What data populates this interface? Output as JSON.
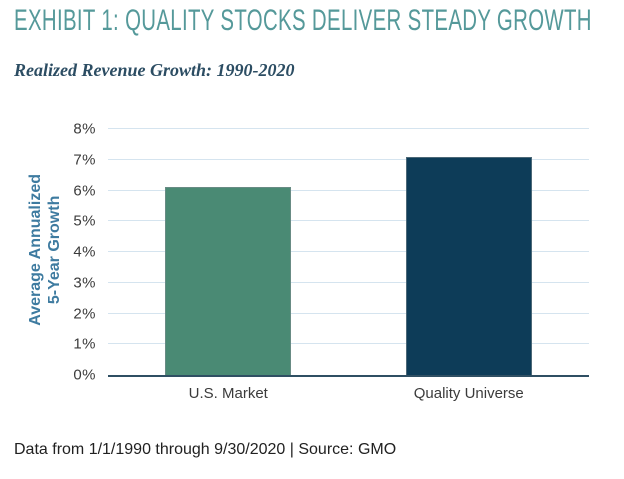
{
  "header": {
    "title": "EXHIBIT 1: QUALITY STOCKS DELIVER STEADY GROWTH",
    "subtitle": "Realized Revenue Growth: 1990-2020"
  },
  "chart_data": {
    "type": "bar",
    "categories": [
      "U.S. Market",
      "Quality Universe"
    ],
    "values": [
      6.1,
      7.1
    ],
    "title": "Realized Revenue Growth: 1990-2020",
    "xlabel": "",
    "ylabel": "Average Annualized 5-Year Growth",
    "ylabel_lines": [
      "Average Annualized",
      "5-Year Growth"
    ],
    "ylim": [
      0,
      8
    ],
    "ytick_labels": [
      "0%",
      "1%",
      "2%",
      "3%",
      "4%",
      "5%",
      "6%",
      "7%",
      "8%"
    ],
    "grid": "horizontal",
    "legend": "none",
    "bar_colors": [
      "#4A8A74",
      "#0D3C58"
    ]
  },
  "footer": {
    "note": "Data from 1/1/1990 through 9/30/2020 | Source: GMO"
  },
  "colors": {
    "title_text": "#55999A",
    "subtitle_text": "#2C4D63",
    "axis_title_text": "#3E7BA0",
    "tick_label_text": "#3B3B3B",
    "gridline": "#D5E4EF",
    "baseline": "#2F4F63",
    "bar_us_market": "#4A8A74",
    "bar_quality_universe": "#0D3C58",
    "footer_text": "#212121"
  }
}
